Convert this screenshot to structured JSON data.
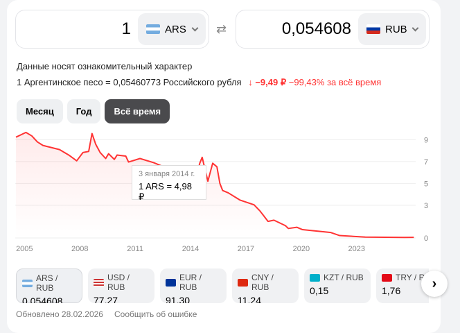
{
  "converter": {
    "from_amount": "1",
    "from_currency": "ARS",
    "to_amount": "0,054608",
    "to_currency": "RUB"
  },
  "info": {
    "disclaimer": "Данные носят ознакомительный характер",
    "rate_text": "1 Аргентинское песо = 0,05460773 Российского рубля",
    "change_abs": "−9,49 ₽",
    "change_pct": "−99,43%",
    "change_period": "за всё время"
  },
  "tabs": [
    {
      "label": "Месяц"
    },
    {
      "label": "Год"
    },
    {
      "label": "Всё время",
      "active": true
    }
  ],
  "tooltip": {
    "date": "3 января 2014 г.",
    "value": "1 ARS = 4,98 ₽"
  },
  "chart_data": {
    "type": "line",
    "x_ticks": [
      "2005",
      "2008",
      "2011",
      "2014",
      "2017",
      "2020",
      "2023"
    ],
    "y_ticks": [
      "9",
      "7",
      "5",
      "3",
      "0"
    ],
    "xlim": [
      2004.5,
      2026.2
    ],
    "ylim": [
      0,
      9.6
    ],
    "color": "#ff3333",
    "grid": true,
    "series": [
      {
        "points": [
          [
            2004.54,
            9.24
          ],
          [
            2005.08,
            9.67
          ],
          [
            2005.4,
            9.35
          ],
          [
            2005.7,
            8.8
          ],
          [
            2006.0,
            8.48
          ],
          [
            2006.9,
            8.1
          ],
          [
            2007.4,
            7.6
          ],
          [
            2007.83,
            7.07
          ],
          [
            2008.17,
            7.83
          ],
          [
            2008.48,
            7.93
          ],
          [
            2008.66,
            9.57
          ],
          [
            2008.86,
            8.59
          ],
          [
            2009.1,
            7.83
          ],
          [
            2009.4,
            7.28
          ],
          [
            2009.56,
            7.72
          ],
          [
            2009.87,
            7.2
          ],
          [
            2010.02,
            7.6
          ],
          [
            2010.49,
            7.5
          ],
          [
            2010.64,
            6.96
          ],
          [
            2011.26,
            7.28
          ],
          [
            2012.0,
            6.9
          ],
          [
            2013.0,
            6.2
          ],
          [
            2014.0,
            4.98
          ],
          [
            2014.3,
            5.5
          ],
          [
            2014.5,
            6.85
          ],
          [
            2014.63,
            7.39
          ],
          [
            2014.94,
            5.2
          ],
          [
            2015.2,
            6.85
          ],
          [
            2015.43,
            6.52
          ],
          [
            2015.59,
            5.0
          ],
          [
            2015.74,
            4.35
          ],
          [
            2016.05,
            4.13
          ],
          [
            2016.67,
            3.48
          ],
          [
            2017.44,
            3.04
          ],
          [
            2017.75,
            2.5
          ],
          [
            2018.2,
            1.52
          ],
          [
            2018.52,
            1.63
          ],
          [
            2019.14,
            1.13
          ],
          [
            2019.3,
            0.87
          ],
          [
            2019.76,
            0.98
          ],
          [
            2020.07,
            0.76
          ],
          [
            2021.6,
            0.5
          ],
          [
            2022.08,
            0.22
          ],
          [
            2023.47,
            0.08
          ],
          [
            2025.6,
            0.05
          ],
          [
            2026.1,
            0.055
          ]
        ]
      }
    ]
  },
  "pairs": [
    {
      "label": "ARS / RUB",
      "rate": "0,054608",
      "flag": "ar"
    },
    {
      "label": "USD / RUB",
      "rate": "77,27",
      "flag": "us"
    },
    {
      "label": "EUR / RUB",
      "rate": "91,30",
      "flag": "eu"
    },
    {
      "label": "CNY / RUB",
      "rate": "11,24",
      "flag": "cn"
    },
    {
      "label": "KZT / RUB",
      "rate": "0,15",
      "flag": "kz"
    },
    {
      "label": "TRY / RUB",
      "rate": "1,76",
      "flag": "tr"
    }
  ],
  "footer": {
    "updated": "Обновлено 28.02.2026",
    "report": "Сообщить об ошибке"
  }
}
